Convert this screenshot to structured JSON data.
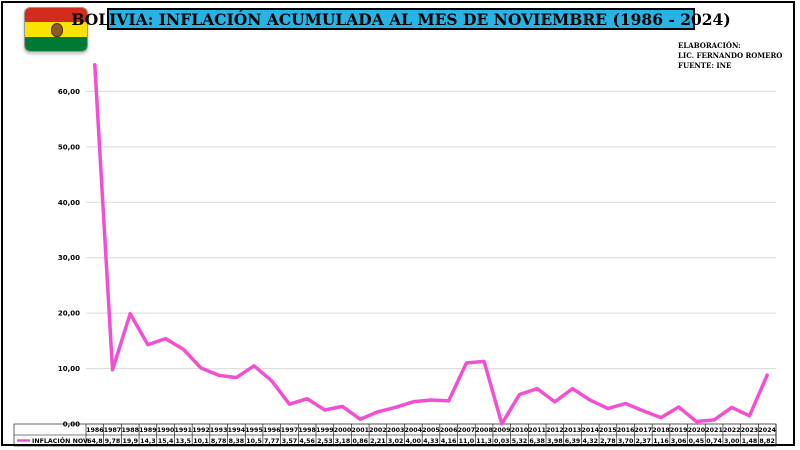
{
  "header": {
    "title": "BOLIVIA: INFLACIÓN ACUMULADA AL MES DE NOVIEMBRE (1986 - 2024)"
  },
  "credits": {
    "line1": "ELABORACIÓN:",
    "line2": "LIC. FERNANDO ROMERO",
    "line3": "FUENTE: INE"
  },
  "colors": {
    "series": "#f24fd2",
    "title_bg": "#27b3e4",
    "flag_red": "#d52b1e",
    "flag_yellow": "#f9e300",
    "flag_green": "#007934"
  },
  "chart_data": {
    "type": "line",
    "title": "BOLIVIA: INFLACIÓN ACUMULADA AL MES DE NOVIEMBRE (1986 - 2024)",
    "xlabel": "",
    "ylabel": "",
    "ylim": [
      0,
      70
    ],
    "yticks": [
      "0,00",
      "10,00",
      "20,00",
      "30,00",
      "40,00",
      "50,00",
      "60,00"
    ],
    "grid": true,
    "legend": "data-table-bottom",
    "categories": [
      "1986",
      "1987",
      "1988",
      "1989",
      "1990",
      "1991",
      "1992",
      "1993",
      "1994",
      "1995",
      "1996",
      "1997",
      "1998",
      "1999",
      "2000",
      "2001",
      "2002",
      "2003",
      "2004",
      "2005",
      "2006",
      "2007",
      "2008",
      "2009",
      "2010",
      "2011",
      "2012",
      "2013",
      "2014",
      "2015",
      "2016",
      "2017",
      "2018",
      "2019",
      "2020",
      "2021",
      "2022",
      "2023",
      "2024"
    ],
    "series": [
      {
        "name": "INFLACIÓN NOV.",
        "values": [
          64.8,
          9.78,
          19.9,
          14.3,
          15.4,
          13.5,
          10.1,
          8.78,
          8.38,
          10.5,
          7.77,
          3.57,
          4.56,
          2.53,
          3.18,
          0.86,
          2.21,
          3.02,
          4.0,
          4.33,
          4.16,
          11.0,
          11.3,
          0.03,
          5.32,
          6.38,
          3.98,
          6.39,
          4.32,
          2.78,
          3.7,
          2.37,
          1.16,
          3.06,
          0.45,
          0.74,
          3.0,
          1.48,
          8.82
        ],
        "labels": [
          "64,8",
          "9,78",
          "19,9",
          "14,3",
          "15,4",
          "13,5",
          "10,1",
          "8,78",
          "8,38",
          "10,5",
          "7,77",
          "3,57",
          "4,56",
          "2,53",
          "3,18",
          "0,86",
          "2,21",
          "3,02",
          "4,00",
          "4,33",
          "4,16",
          "11,0",
          "11,3",
          "0,03",
          "5,32",
          "6,38",
          "3,98",
          "6,39",
          "4,32",
          "2,78",
          "3,70",
          "2,37",
          "1,16",
          "3,06",
          "0,45",
          "0,74",
          "3,00",
          "1,48",
          "8,82"
        ]
      }
    ]
  }
}
